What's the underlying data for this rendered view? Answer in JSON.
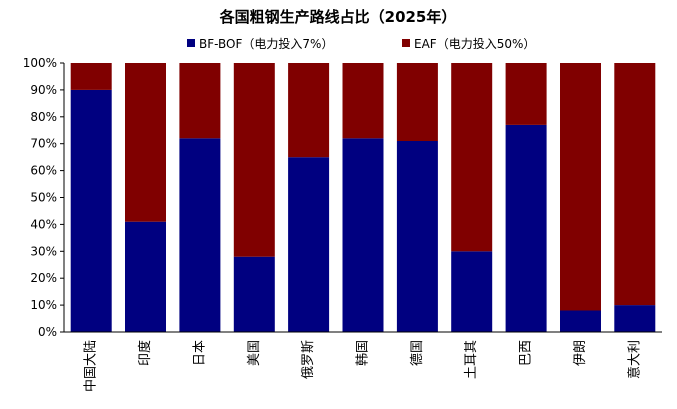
{
  "chart_data": {
    "type": "bar",
    "stacked": true,
    "title": "各国粗钢生产路线占比（2025年）",
    "categories": [
      "中国大陆",
      "印度",
      "日本",
      "美国",
      "俄罗斯",
      "韩国",
      "德国",
      "土耳其",
      "巴西",
      "伊朗",
      "意大利"
    ],
    "series": [
      {
        "name": "BF-BOF（电力投入7%）",
        "color": "#000080",
        "values": [
          90,
          41,
          72,
          28,
          65,
          72,
          71,
          30,
          77,
          8,
          10
        ]
      },
      {
        "name": "EAF（电力投入50%）",
        "color": "#800000",
        "values": [
          10,
          59,
          28,
          72,
          35,
          28,
          29,
          70,
          23,
          92,
          90
        ]
      }
    ],
    "yticks": [
      "0%",
      "10%",
      "20%",
      "30%",
      "40%",
      "50%",
      "60%",
      "70%",
      "80%",
      "90%",
      "100%"
    ],
    "ylim": [
      0,
      100
    ],
    "legend_position": "top",
    "grid": false
  }
}
